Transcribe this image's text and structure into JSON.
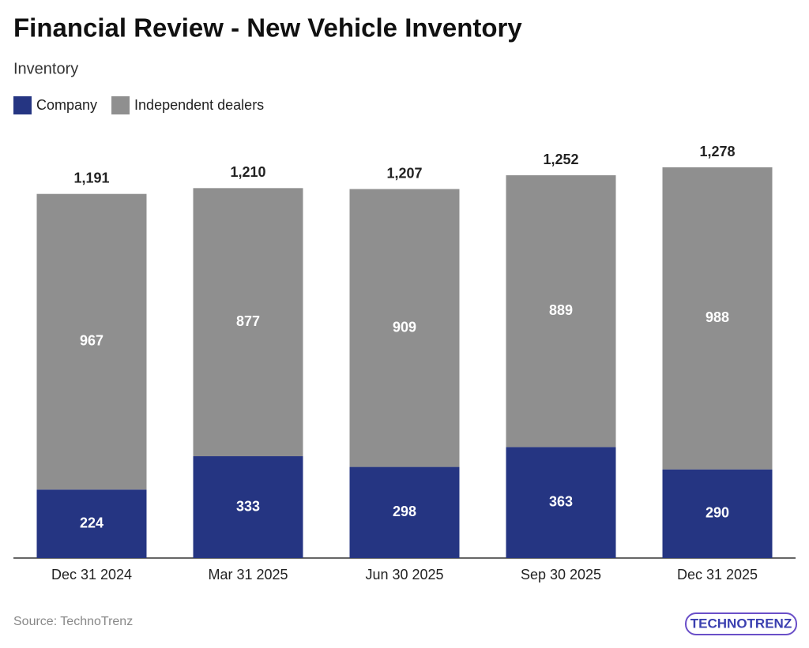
{
  "chart_data": {
    "type": "stacked-bar",
    "title": "Financial Review - New Vehicle Inventory",
    "subtitle": "Inventory",
    "categories": [
      "Dec 31 2024",
      "Mar 31 2025",
      "Jun 30 2025",
      "Sep 30 2025",
      "Dec 31 2025"
    ],
    "series": [
      {
        "name": "Company",
        "color": "#253582",
        "values": [
          224,
          333,
          298,
          363,
          290
        ]
      },
      {
        "name": "Independent dealers",
        "color": "#8f8f8f",
        "values": [
          967,
          877,
          909,
          889,
          988
        ]
      }
    ],
    "totals": [
      1191,
      1210,
      1207,
      1252,
      1278
    ],
    "total_labels": [
      "1,191",
      "1,210",
      "1,207",
      "1,252",
      "1,278"
    ],
    "source": "Source: TechnoTrenz",
    "logo": "TECHNOTRENZ"
  }
}
